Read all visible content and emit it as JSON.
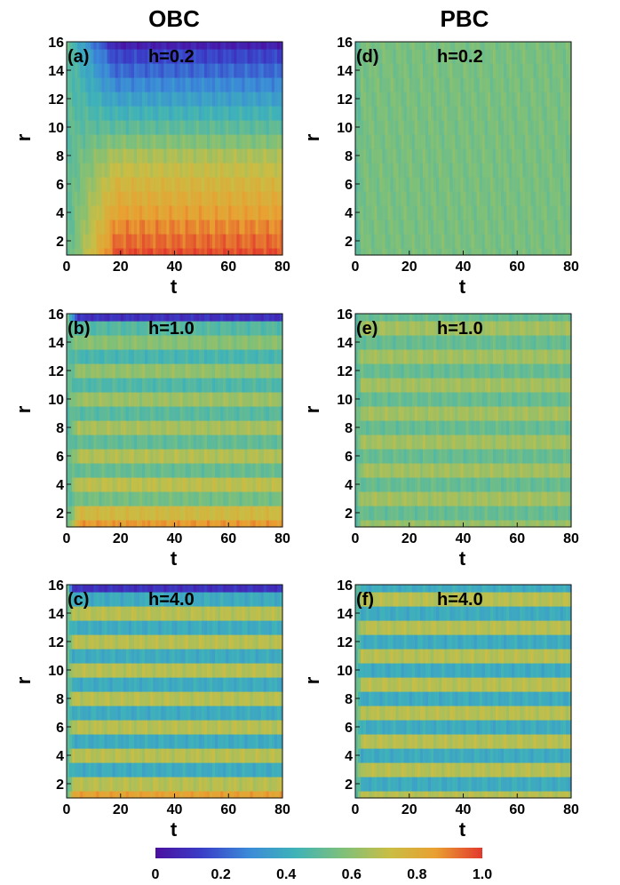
{
  "columns": {
    "left_title": "OBC",
    "right_title": "PBC"
  },
  "colormap": {
    "name": "rainbow",
    "stops": [
      "#4B0FA0",
      "#3A3FC8",
      "#3B8AD8",
      "#3FB3B8",
      "#7DC07A",
      "#C8BE45",
      "#E9A031",
      "#E2382E"
    ]
  },
  "colorbar": {
    "tick_labels": [
      "0",
      "0.2",
      "0.4",
      "0.6",
      "0.8",
      "1.0"
    ],
    "ticks": [
      0,
      0.2,
      0.4,
      0.6,
      0.8,
      1.0
    ],
    "range": [
      0,
      1
    ]
  },
  "chart_data": [
    {
      "type": "heatmap",
      "panel": "(a)",
      "title": "h=0.2",
      "boundary": "OBC",
      "xlabel": "t",
      "ylabel": "r",
      "xlim": [
        0,
        80
      ],
      "ylim": [
        1,
        16
      ],
      "x_ticks": [
        0,
        20,
        40,
        60,
        80
      ],
      "x_tick_labels": [
        "0",
        "20",
        "40",
        "60",
        "80"
      ],
      "y_ticks": [
        2,
        4,
        6,
        8,
        10,
        12,
        14,
        16
      ],
      "y_tick_labels": [
        "2",
        "4",
        "6",
        "8",
        "10",
        "12",
        "14",
        "16"
      ],
      "r": [
        1,
        2,
        3,
        4,
        5,
        6,
        7,
        8,
        9,
        10,
        11,
        12,
        13,
        14,
        15,
        16
      ],
      "steady_values": [
        0.97,
        0.93,
        0.89,
        0.84,
        0.8,
        0.76,
        0.71,
        0.66,
        0.58,
        0.5,
        0.43,
        0.36,
        0.29,
        0.22,
        0.15,
        0.05
      ],
      "early_value": 0.5,
      "transient_until_t": 18
    },
    {
      "type": "heatmap",
      "panel": "(b)",
      "title": "h=1.0",
      "boundary": "OBC",
      "xlabel": "t",
      "ylabel": "r",
      "xlim": [
        0,
        80
      ],
      "ylim": [
        1,
        16
      ],
      "x_ticks": [
        0,
        20,
        40,
        60,
        80
      ],
      "x_tick_labels": [
        "0",
        "20",
        "40",
        "60",
        "80"
      ],
      "y_ticks": [
        2,
        4,
        6,
        8,
        10,
        12,
        14,
        16
      ],
      "y_tick_labels": [
        "2",
        "4",
        "6",
        "8",
        "10",
        "12",
        "14",
        "16"
      ],
      "r": [
        1,
        2,
        3,
        4,
        5,
        6,
        7,
        8,
        9,
        10,
        11,
        12,
        13,
        14,
        15,
        16
      ],
      "steady_values": [
        0.86,
        0.74,
        0.55,
        0.69,
        0.52,
        0.67,
        0.51,
        0.65,
        0.49,
        0.63,
        0.47,
        0.61,
        0.45,
        0.59,
        0.48,
        0.1
      ],
      "early_value": 0.5,
      "transient_until_t": 4
    },
    {
      "type": "heatmap",
      "panel": "(c)",
      "title": "h=4.0",
      "boundary": "OBC",
      "xlabel": "t",
      "ylabel": "r",
      "xlim": [
        0,
        80
      ],
      "ylim": [
        1,
        16
      ],
      "x_ticks": [
        0,
        20,
        40,
        60,
        80
      ],
      "x_tick_labels": [
        "0",
        "20",
        "40",
        "60",
        "80"
      ],
      "y_ticks": [
        2,
        4,
        6,
        8,
        10,
        12,
        14,
        16
      ],
      "y_tick_labels": [
        "2",
        "4",
        "6",
        "8",
        "10",
        "12",
        "14",
        "16"
      ],
      "r": [
        1,
        2,
        3,
        4,
        5,
        6,
        7,
        8,
        9,
        10,
        11,
        12,
        13,
        14,
        15,
        16
      ],
      "steady_values": [
        0.84,
        0.68,
        0.4,
        0.68,
        0.4,
        0.68,
        0.4,
        0.68,
        0.4,
        0.68,
        0.4,
        0.68,
        0.4,
        0.68,
        0.4,
        0.1
      ],
      "early_value": 0.5,
      "transient_until_t": 2
    },
    {
      "type": "heatmap",
      "panel": "(d)",
      "title": "h=0.2",
      "boundary": "PBC",
      "xlabel": "t",
      "ylabel": "r",
      "xlim": [
        0,
        80
      ],
      "ylim": [
        1,
        16
      ],
      "x_ticks": [
        0,
        20,
        40,
        60,
        80
      ],
      "x_tick_labels": [
        "0",
        "20",
        "40",
        "60",
        "80"
      ],
      "y_ticks": [
        2,
        4,
        6,
        8,
        10,
        12,
        14,
        16
      ],
      "y_tick_labels": [
        "2",
        "4",
        "6",
        "8",
        "10",
        "12",
        "14",
        "16"
      ],
      "r": [
        1,
        2,
        3,
        4,
        5,
        6,
        7,
        8,
        9,
        10,
        11,
        12,
        13,
        14,
        15,
        16
      ],
      "steady_values": [
        0.56,
        0.56,
        0.56,
        0.56,
        0.56,
        0.56,
        0.56,
        0.56,
        0.56,
        0.56,
        0.56,
        0.56,
        0.56,
        0.56,
        0.56,
        0.56
      ],
      "early_value": 0.5,
      "transient_until_t": 2
    },
    {
      "type": "heatmap",
      "panel": "(e)",
      "title": "h=1.0",
      "boundary": "PBC",
      "xlabel": "t",
      "ylabel": "r",
      "xlim": [
        0,
        80
      ],
      "ylim": [
        1,
        16
      ],
      "x_ticks": [
        0,
        20,
        40,
        60,
        80
      ],
      "x_tick_labels": [
        "0",
        "20",
        "40",
        "60",
        "80"
      ],
      "y_ticks": [
        2,
        4,
        6,
        8,
        10,
        12,
        14,
        16
      ],
      "y_tick_labels": [
        "2",
        "4",
        "6",
        "8",
        "10",
        "12",
        "14",
        "16"
      ],
      "r": [
        1,
        2,
        3,
        4,
        5,
        6,
        7,
        8,
        9,
        10,
        11,
        12,
        13,
        14,
        15,
        16
      ],
      "steady_values": [
        0.62,
        0.52,
        0.64,
        0.52,
        0.64,
        0.52,
        0.64,
        0.52,
        0.64,
        0.52,
        0.64,
        0.52,
        0.64,
        0.52,
        0.64,
        0.52
      ],
      "early_value": 0.5,
      "transient_until_t": 2
    },
    {
      "type": "heatmap",
      "panel": "(f)",
      "title": "h=4.0",
      "boundary": "PBC",
      "xlabel": "t",
      "ylabel": "r",
      "xlim": [
        0,
        80
      ],
      "ylim": [
        1,
        16
      ],
      "x_ticks": [
        0,
        20,
        40,
        60,
        80
      ],
      "x_tick_labels": [
        "0",
        "20",
        "40",
        "60",
        "80"
      ],
      "y_ticks": [
        2,
        4,
        6,
        8,
        10,
        12,
        14,
        16
      ],
      "y_tick_labels": [
        "2",
        "4",
        "6",
        "8",
        "10",
        "12",
        "14",
        "16"
      ],
      "r": [
        1,
        2,
        3,
        4,
        5,
        6,
        7,
        8,
        9,
        10,
        11,
        12,
        13,
        14,
        15,
        16
      ],
      "steady_values": [
        0.68,
        0.4,
        0.68,
        0.4,
        0.68,
        0.4,
        0.68,
        0.4,
        0.68,
        0.4,
        0.68,
        0.4,
        0.68,
        0.4,
        0.68,
        0.4
      ],
      "early_value": 0.5,
      "transient_until_t": 2
    }
  ]
}
